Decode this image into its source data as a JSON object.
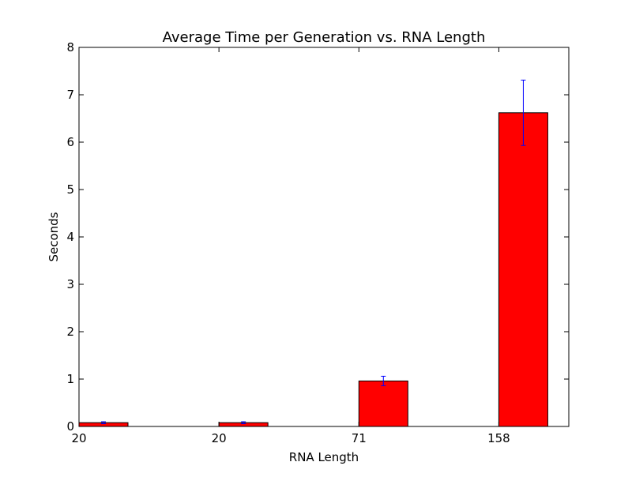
{
  "chart_data": {
    "type": "bar",
    "title": "Average Time per Generation vs. RNA Length",
    "xlabel": "RNA Length",
    "ylabel": "Seconds",
    "categories": [
      "20",
      "20",
      "71",
      "158"
    ],
    "values": [
      0.08,
      0.08,
      0.96,
      6.62
    ],
    "errors": [
      0.02,
      0.02,
      0.1,
      0.69
    ],
    "ylim": [
      0,
      8
    ],
    "yticks": [
      0,
      1,
      2,
      3,
      4,
      5,
      6,
      7,
      8
    ],
    "grid": false,
    "bar_color": "#ff0000",
    "bar_edge_color": "#000000",
    "error_color": "#0000ff"
  }
}
